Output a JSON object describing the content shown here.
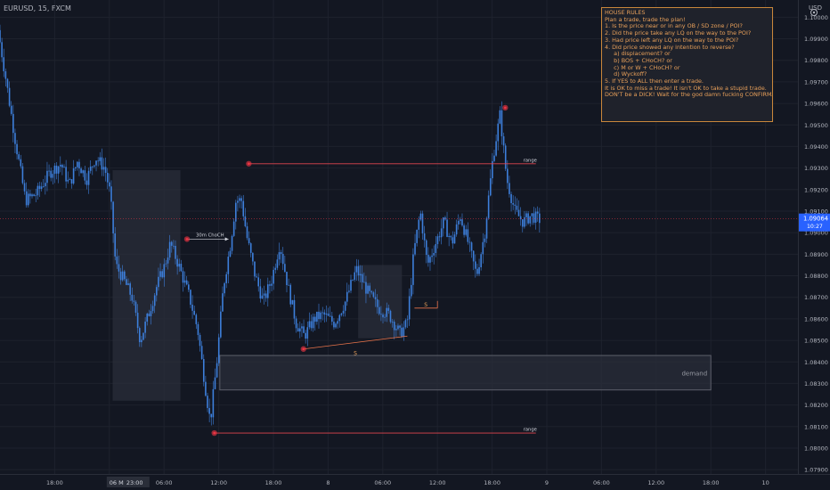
{
  "header": {
    "symbol": "EURUSD, 15, FXCM",
    "currency": "USD"
  },
  "house_rules": {
    "title": "HOUSE RULES",
    "lines": [
      "",
      "Plan a trade, trade the plan!",
      "",
      "1. Is the price near or in any OB / SD zone / POI?",
      "2. Did the price take any LQ on the way to the POI?",
      "3. Had price left any LQ on the way to the POI?",
      "4. Did price showed any intention to reverse?",
      "     a) displacement? or",
      "     b) BOS + CHoCH? or",
      "     c) M or W + CHoCH? or",
      "     d) Wyckoff?",
      "5. If YES to ALL then enter a trade.",
      "",
      "It is OK to miss a trade! It isn't OK to take a stupid trade.",
      "",
      "DON'T be a DICK! Wait for the god damn fucking CONFIRMATION!!!!!!"
    ]
  },
  "colors": {
    "background": "#131722",
    "candle": "#3d7fdb",
    "grid": "#1e222d",
    "price_line": "#f23645",
    "zone": "#2a2e39",
    "text": "#b2b5be",
    "accent": "#e8a05a"
  },
  "chart_data": {
    "type": "candlestick",
    "symbol": "EURUSD",
    "timeframe": "15",
    "ylim": [
      1.0788,
      1.1008
    ],
    "y_ticks": [
      1.079,
      1.08,
      1.081,
      1.082,
      1.083,
      1.084,
      1.085,
      1.086,
      1.087,
      1.088,
      1.089,
      1.09,
      1.091,
      1.092,
      1.093,
      1.094,
      1.095,
      1.096,
      1.097,
      1.098,
      1.099,
      1.1
    ],
    "y_tick_labels": [
      "1.07900",
      "1.08000",
      "1.08100",
      "1.08200",
      "1.08300",
      "1.08400",
      "1.08500",
      "1.08600",
      "1.08700",
      "1.08800",
      "1.08900",
      "1.09000",
      "1.09100",
      "1.09200",
      "1.09300",
      "1.09400",
      "1.09500",
      "1.09600",
      "1.09700",
      "1.09800",
      "1.09900",
      "1.10000"
    ],
    "current_price": 1.09064,
    "current_price_label": "1.09064",
    "countdown": "10:27",
    "x_ticks": [
      {
        "t": 1,
        "label": "18:00"
      },
      {
        "t": 2,
        "label": "06 Mar '22",
        "highlight": true
      },
      {
        "t": 2.31,
        "label": "23:00",
        "highlight": true
      },
      {
        "t": 3,
        "label": "06:00"
      },
      {
        "t": 4,
        "label": "12:00"
      },
      {
        "t": 5,
        "label": "18:00"
      },
      {
        "t": 6,
        "label": "8"
      },
      {
        "t": 7,
        "label": "06:00"
      },
      {
        "t": 8,
        "label": "12:00"
      },
      {
        "t": 9,
        "label": "18:00"
      },
      {
        "t": 10,
        "label": "9"
      },
      {
        "t": 11,
        "label": "06:00"
      },
      {
        "t": 12,
        "label": "12:00"
      },
      {
        "t": 13,
        "label": "18:00"
      },
      {
        "t": 14,
        "label": "10"
      }
    ],
    "price_path": [
      [
        0.0,
        1.0994
      ],
      [
        0.15,
        1.097
      ],
      [
        0.3,
        1.0945
      ],
      [
        0.5,
        1.0915
      ],
      [
        0.7,
        1.0918
      ],
      [
        0.95,
        1.0928
      ],
      [
        1.15,
        1.0932
      ],
      [
        1.3,
        1.0922
      ],
      [
        1.45,
        1.0933
      ],
      [
        1.62,
        1.0925
      ],
      [
        1.78,
        1.0935
      ],
      [
        1.95,
        1.093
      ],
      [
        2.05,
        1.0918
      ],
      [
        2.15,
        1.0885
      ],
      [
        2.3,
        1.0878
      ],
      [
        2.45,
        1.087
      ],
      [
        2.6,
        1.085
      ],
      [
        2.75,
        1.0862
      ],
      [
        2.9,
        1.0875
      ],
      [
        3.05,
        1.0885
      ],
      [
        3.15,
        1.0895
      ],
      [
        3.3,
        1.0885
      ],
      [
        3.5,
        1.087
      ],
      [
        3.65,
        1.0855
      ],
      [
        3.78,
        1.083
      ],
      [
        3.88,
        1.0812
      ],
      [
        4.0,
        1.084
      ],
      [
        4.12,
        1.0875
      ],
      [
        4.25,
        1.0895
      ],
      [
        4.35,
        1.0915
      ],
      [
        4.45,
        1.0915
      ],
      [
        4.55,
        1.0898
      ],
      [
        4.7,
        1.088
      ],
      [
        4.85,
        1.0868
      ],
      [
        5.0,
        1.0878
      ],
      [
        5.15,
        1.0895
      ],
      [
        5.3,
        1.0875
      ],
      [
        5.45,
        1.0858
      ],
      [
        5.6,
        1.0852
      ],
      [
        5.78,
        1.086
      ],
      [
        5.95,
        1.0862
      ],
      [
        6.15,
        1.0858
      ],
      [
        6.35,
        1.0868
      ],
      [
        6.55,
        1.0883
      ],
      [
        6.75,
        1.0873
      ],
      [
        6.95,
        1.0865
      ],
      [
        7.15,
        1.0862
      ],
      [
        7.35,
        1.0853
      ],
      [
        7.48,
        1.0858
      ],
      [
        7.6,
        1.089
      ],
      [
        7.72,
        1.091
      ],
      [
        7.85,
        1.0885
      ],
      [
        8.0,
        1.0895
      ],
      [
        8.15,
        1.0905
      ],
      [
        8.3,
        1.0895
      ],
      [
        8.45,
        1.0908
      ],
      [
        8.6,
        1.0895
      ],
      [
        8.75,
        1.088
      ],
      [
        8.9,
        1.09
      ],
      [
        9.05,
        1.0935
      ],
      [
        9.18,
        1.0955
      ],
      [
        9.3,
        1.0925
      ],
      [
        9.45,
        1.091
      ],
      [
        9.6,
        1.0905
      ],
      [
        9.75,
        1.0908
      ],
      [
        9.9,
        1.0906
      ]
    ],
    "zones": [
      {
        "label": "",
        "t0": 2.06,
        "t1": 3.3,
        "y0": 1.0822,
        "y1": 1.0929
      },
      {
        "label": "",
        "t0": 6.55,
        "t1": 7.35,
        "y0": 1.0851,
        "y1": 1.0885
      },
      {
        "label": "demand",
        "t0": 4.02,
        "t1": 13.0,
        "y0": 1.0827,
        "y1": 1.0843
      }
    ],
    "range_lines": [
      {
        "label": "range",
        "t0": 4.55,
        "t1": 9.8,
        "y": 1.0932
      },
      {
        "label": "range",
        "t0": 3.92,
        "t1": 9.8,
        "y": 1.0807
      }
    ],
    "annotations": [
      {
        "label": "30m ChoCH",
        "t0": 3.42,
        "t1": 4.18,
        "y": 1.0897
      },
      {
        "label": "S",
        "t0": 5.55,
        "t1": 7.45,
        "y": 1.0846
      },
      {
        "label": "S",
        "t0": 7.58,
        "t1": 8.0,
        "y": 1.0865
      }
    ],
    "swing_points": [
      {
        "t": 3.42,
        "y": 1.0897
      },
      {
        "t": 4.55,
        "y": 1.0932
      },
      {
        "t": 9.24,
        "y": 1.0958
      },
      {
        "t": 5.55,
        "y": 1.0846
      },
      {
        "t": 3.92,
        "y": 1.0807
      }
    ]
  }
}
